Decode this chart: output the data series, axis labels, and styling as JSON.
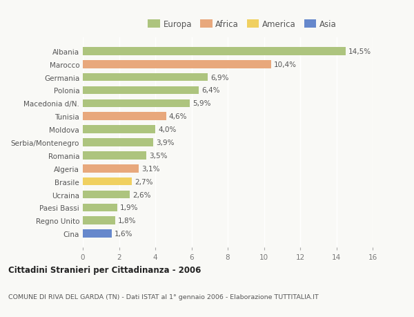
{
  "countries": [
    "Albania",
    "Marocco",
    "Germania",
    "Polonia",
    "Macedonia d/N.",
    "Tunisia",
    "Moldova",
    "Serbia/Montenegro",
    "Romania",
    "Algeria",
    "Brasile",
    "Ucraina",
    "Paesi Bassi",
    "Regno Unito",
    "Cina"
  ],
  "values": [
    14.5,
    10.4,
    6.9,
    6.4,
    5.9,
    4.6,
    4.0,
    3.9,
    3.5,
    3.1,
    2.7,
    2.6,
    1.9,
    1.8,
    1.6
  ],
  "labels": [
    "14,5%",
    "10,4%",
    "6,9%",
    "6,4%",
    "5,9%",
    "4,6%",
    "4,0%",
    "3,9%",
    "3,5%",
    "3,1%",
    "2,7%",
    "2,6%",
    "1,9%",
    "1,8%",
    "1,6%"
  ],
  "continents": [
    "Europa",
    "Africa",
    "Europa",
    "Europa",
    "Europa",
    "Africa",
    "Europa",
    "Europa",
    "Europa",
    "Africa",
    "America",
    "Europa",
    "Europa",
    "Europa",
    "Asia"
  ],
  "colors": {
    "Europa": "#adc47e",
    "Africa": "#e8a87c",
    "America": "#f0d060",
    "Asia": "#6688cc"
  },
  "legend_labels": [
    "Europa",
    "Africa",
    "America",
    "Asia"
  ],
  "legend_colors": [
    "#adc47e",
    "#e8a87c",
    "#f0d060",
    "#6688cc"
  ],
  "title": "Cittadini Stranieri per Cittadinanza - 2006",
  "subtitle": "COMUNE DI RIVA DEL GARDA (TN) - Dati ISTAT al 1° gennaio 2006 - Elaborazione TUTTITALIA.IT",
  "xlim": [
    0,
    16
  ],
  "xticks": [
    0,
    2,
    4,
    6,
    8,
    10,
    12,
    14,
    16
  ],
  "background_color": "#f9f9f6",
  "grid_color": "#ffffff"
}
